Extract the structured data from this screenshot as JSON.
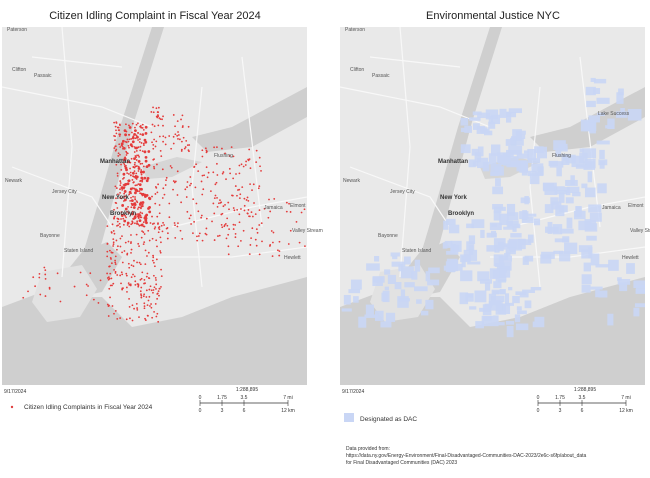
{
  "left_map": {
    "title": "Citizen Idling Complaint in Fiscal Year 2024",
    "date": "9/17/2024",
    "scale": "1:288,895",
    "scale_mi": [
      "0",
      "1.75",
      "3.5",
      "7 mi"
    ],
    "scale_km": [
      "0",
      "3",
      "6",
      "12 km"
    ],
    "legend": "Citizen Idling Complaints in Fiscal Year 2024",
    "labels": [
      "Paterson",
      "Clifton",
      "Passaic",
      "Manhattan",
      "Newark",
      "Jersey City",
      "Brooklyn",
      "New York",
      "Flushing",
      "Bayonne",
      "Staten Island",
      "Elmont",
      "Valley Stream",
      "Hewlett",
      "Jamaica"
    ]
  },
  "right_map": {
    "title": "Environmental Justice NYC",
    "date": "9/17/2024",
    "scale": "1:288,895",
    "scale_mi": [
      "0",
      "1.75",
      "3.5",
      "7 mi"
    ],
    "scale_km": [
      "0",
      "3",
      "6",
      "12 km"
    ],
    "legend": "Designated as DAC",
    "labels": [
      "Paterson",
      "Clifton",
      "Passaic",
      "Manhattan",
      "Newark",
      "Jersey City",
      "Brooklyn",
      "New York",
      "Flushing",
      "Bayonne",
      "Staten Island",
      "Elmont",
      "Valley Stream",
      "Hewlett",
      "Jamaica",
      "Lake Success"
    ]
  },
  "source": [
    "Data provided from:",
    "https://data.ny.gov/Energy-Environment/Final-Disadvantaged-Communities-DAC-2023/2e6c-s6fp/about_data",
    "for Final Disadvantaged Communities (DAC) 2023"
  ]
}
